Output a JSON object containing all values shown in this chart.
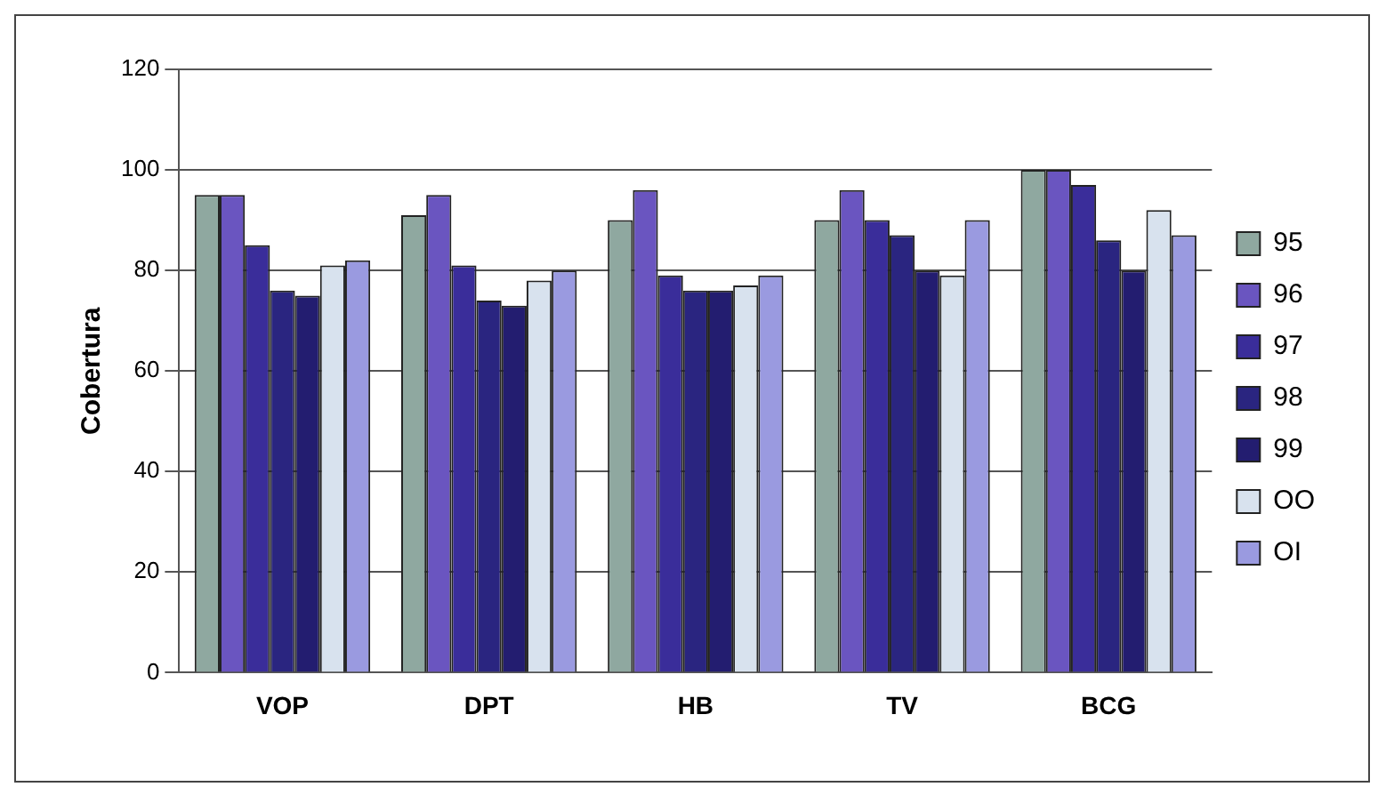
{
  "chart_data": {
    "type": "bar",
    "ylabel": "Cobertura",
    "categories": [
      "VOP",
      "DPT",
      "HB",
      "TV",
      "BCG"
    ],
    "series": [
      {
        "name": "95",
        "color": "#8fa8a0",
        "values": [
          95,
          91,
          90,
          90,
          100
        ]
      },
      {
        "name": "96",
        "color": "#6a55c0",
        "values": [
          95,
          95,
          96,
          96,
          100
        ]
      },
      {
        "name": "97",
        "color": "#3a2d9a",
        "values": [
          85,
          81,
          79,
          90,
          97
        ]
      },
      {
        "name": "98",
        "color": "#2a2580",
        "values": [
          76,
          74,
          76,
          87,
          86
        ]
      },
      {
        "name": "99",
        "color": "#231d70",
        "values": [
          75,
          73,
          76,
          80,
          80
        ]
      },
      {
        "name": "OO",
        "color": "#d8e2ee",
        "values": [
          81,
          78,
          77,
          79,
          92
        ]
      },
      {
        "name": "OI",
        "color": "#9a9ae0",
        "values": [
          82,
          80,
          79,
          90,
          87
        ]
      }
    ],
    "ylim": [
      0,
      120
    ],
    "yticks": [
      0,
      20,
      40,
      60,
      80,
      100,
      120
    ],
    "grid": "y",
    "legend": "right"
  }
}
